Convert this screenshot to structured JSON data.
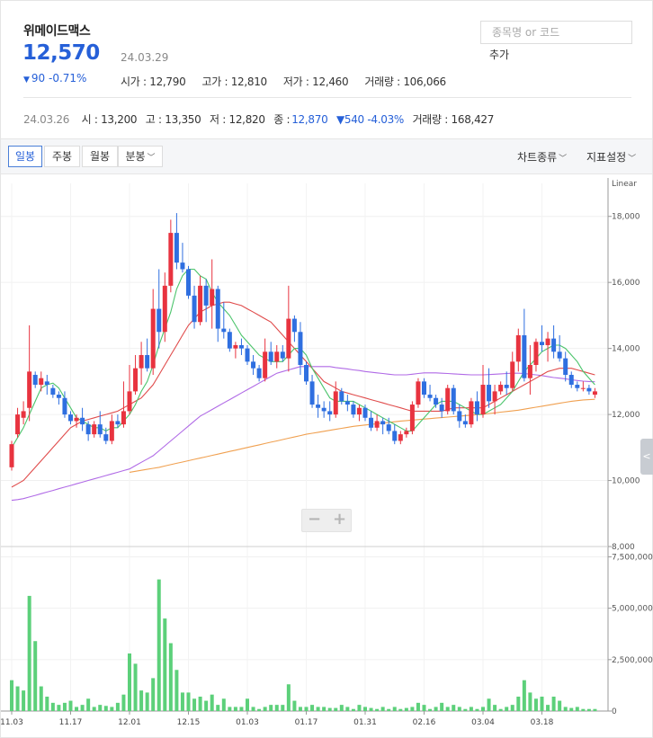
{
  "header": {
    "stock_name": "위메이드맥스",
    "price": "12,570",
    "date": "24.03.29",
    "change_symbol": "▼",
    "change": "90 -0.71%",
    "stats": [
      "시가 : 12,790",
      "고가 : 12,810",
      "저가 : 12,460",
      "거래량 : 106,066"
    ]
  },
  "search": {
    "placeholder": "종목명 or 코드",
    "add_label": "추가"
  },
  "prev_day": {
    "date": "24.03.26",
    "open": "시 : 13,200",
    "high": "고 : 13,350",
    "low": "저 : 12,820",
    "close_label": "종 :",
    "close_value": "12,870",
    "change": "▼540 -4.03%",
    "volume": "거래량 : 168,427"
  },
  "toolbar": {
    "tabs": [
      "일봉",
      "주봉",
      "월봉",
      "분봉"
    ],
    "active_tab": "일봉",
    "chart_type": "차트종류",
    "indicator": "지표설정"
  },
  "colors": {
    "up": "#e8333f",
    "down": "#2f6fe0",
    "ma5": "#4bc46b",
    "ma20": "#e04b4b",
    "ma60": "#b06ae6",
    "ma120": "#f0a050",
    "volume": "#5cd07a"
  },
  "chart_data": {
    "type": "candlestick",
    "scale_label": "Linear",
    "price_axis": {
      "ticks": [
        8000,
        10000,
        12000,
        14000,
        16000,
        18000
      ],
      "ylim": [
        8000,
        19000
      ]
    },
    "volume_axis": {
      "ticks": [
        0,
        2500000,
        5000000,
        7500000
      ],
      "tick_labels": [
        "0",
        "2,500,000",
        "5,000,000",
        "7,500,000"
      ],
      "ylim": [
        0,
        8000000
      ]
    },
    "x_labels": [
      "11.03",
      "11.17",
      "12.01",
      "12.15",
      "01.03",
      "01.17",
      "01.31",
      "02.16",
      "03.04",
      "03.18"
    ],
    "x_label_index": [
      0,
      10,
      20,
      30,
      40,
      50,
      60,
      70,
      80,
      90
    ],
    "candles": [
      [
        10400,
        11200,
        10300,
        11100
      ],
      [
        11400,
        12200,
        11300,
        12000
      ],
      [
        11900,
        12400,
        11700,
        12100
      ],
      [
        12200,
        14700,
        11800,
        13300
      ],
      [
        13200,
        13300,
        12800,
        12900
      ],
      [
        12900,
        13300,
        12700,
        13100
      ],
      [
        13000,
        13200,
        12600,
        12900
      ],
      [
        12800,
        12900,
        12500,
        12600
      ],
      [
        12600,
        12700,
        12300,
        12500
      ],
      [
        12500,
        12700,
        11900,
        12000
      ],
      [
        12000,
        12100,
        11700,
        11800
      ],
      [
        11800,
        12000,
        11600,
        11900
      ],
      [
        11900,
        12200,
        11500,
        11700
      ],
      [
        11700,
        11800,
        11200,
        11400
      ],
      [
        11400,
        11800,
        11300,
        11700
      ],
      [
        11700,
        12100,
        11300,
        11400
      ],
      [
        11400,
        11600,
        11100,
        11200
      ],
      [
        11200,
        12000,
        11100,
        11800
      ],
      [
        11800,
        12000,
        11600,
        11700
      ],
      [
        11700,
        13000,
        11600,
        12100
      ],
      [
        12100,
        13500,
        12000,
        12700
      ],
      [
        12700,
        13800,
        12600,
        13400
      ],
      [
        13400,
        14200,
        12900,
        13800
      ],
      [
        13800,
        14300,
        13300,
        13400
      ],
      [
        13400,
        15800,
        13200,
        15200
      ],
      [
        15200,
        16400,
        14000,
        14500
      ],
      [
        14500,
        16300,
        14200,
        15900
      ],
      [
        15900,
        17900,
        15700,
        17500
      ],
      [
        17500,
        18100,
        16400,
        16600
      ],
      [
        16600,
        17200,
        16300,
        16400
      ],
      [
        16400,
        16500,
        15500,
        15600
      ],
      [
        15600,
        15900,
        14600,
        14800
      ],
      [
        14800,
        16200,
        14700,
        15900
      ],
      [
        15900,
        16100,
        14800,
        15300
      ],
      [
        15300,
        16700,
        14600,
        15800
      ],
      [
        15800,
        15900,
        14200,
        14600
      ],
      [
        14600,
        15400,
        14300,
        14500
      ],
      [
        14500,
        14600,
        13900,
        14000
      ],
      [
        14000,
        14200,
        13700,
        14100
      ],
      [
        14100,
        14300,
        13800,
        14000
      ],
      [
        14000,
        14100,
        13500,
        13600
      ],
      [
        13600,
        13800,
        13200,
        13400
      ],
      [
        13400,
        13500,
        13000,
        13100
      ],
      [
        13100,
        14300,
        13000,
        13900
      ],
      [
        13900,
        14200,
        13500,
        13600
      ],
      [
        13600,
        14100,
        13400,
        13900
      ],
      [
        13900,
        14100,
        13600,
        13700
      ],
      [
        13700,
        15900,
        13300,
        14900
      ],
      [
        14900,
        15000,
        14200,
        14500
      ],
      [
        14500,
        14800,
        13200,
        13500
      ],
      [
        13500,
        13600,
        12900,
        13000
      ],
      [
        13000,
        13200,
        12200,
        12300
      ],
      [
        12300,
        12600,
        11900,
        12200
      ],
      [
        12200,
        12400,
        11900,
        12100
      ],
      [
        12100,
        12400,
        11800,
        12000
      ],
      [
        12000,
        13000,
        11900,
        12700
      ],
      [
        12700,
        12800,
        12300,
        12400
      ],
      [
        12400,
        12600,
        12100,
        12300
      ],
      [
        12300,
        12400,
        11900,
        12000
      ],
      [
        12000,
        12300,
        11800,
        12200
      ],
      [
        12200,
        12300,
        11800,
        11900
      ],
      [
        11900,
        12100,
        11500,
        11600
      ],
      [
        11600,
        12000,
        11500,
        11800
      ],
      [
        11800,
        11900,
        11400,
        11700
      ],
      [
        11700,
        11900,
        11400,
        11500
      ],
      [
        11500,
        11700,
        11100,
        11200
      ],
      [
        11200,
        11500,
        11100,
        11400
      ],
      [
        11400,
        11600,
        11300,
        11500
      ],
      [
        11500,
        12400,
        11400,
        12300
      ],
      [
        12300,
        13100,
        12200,
        13000
      ],
      [
        13000,
        13100,
        12500,
        12600
      ],
      [
        12600,
        12900,
        12400,
        12500
      ],
      [
        12500,
        12600,
        12200,
        12300
      ],
      [
        12300,
        12500,
        11900,
        12100
      ],
      [
        12100,
        12900,
        12000,
        12800
      ],
      [
        12800,
        12900,
        12000,
        12100
      ],
      [
        12100,
        12300,
        11600,
        11800
      ],
      [
        11800,
        12000,
        11600,
        11700
      ],
      [
        11700,
        12500,
        11600,
        12400
      ],
      [
        12400,
        12700,
        11800,
        12000
      ],
      [
        12000,
        13500,
        11900,
        12900
      ],
      [
        12900,
        13400,
        12200,
        12400
      ],
      [
        12400,
        12900,
        12000,
        12700
      ],
      [
        12700,
        13000,
        12600,
        12900
      ],
      [
        12900,
        13300,
        12600,
        12800
      ],
      [
        12800,
        13900,
        12700,
        13600
      ],
      [
        13600,
        14600,
        13300,
        14400
      ],
      [
        14400,
        15200,
        13000,
        13100
      ],
      [
        13100,
        14100,
        12600,
        13500
      ],
      [
        13500,
        14300,
        13300,
        14200
      ],
      [
        14200,
        14700,
        13900,
        14100
      ],
      [
        14100,
        14500,
        13600,
        14300
      ],
      [
        14300,
        14700,
        13700,
        13900
      ],
      [
        13900,
        14400,
        13600,
        13700
      ],
      [
        13700,
        13900,
        13000,
        13200
      ],
      [
        13200,
        13300,
        12800,
        12900
      ],
      [
        12900,
        13000,
        12700,
        12800
      ],
      [
        12800,
        13000,
        12700,
        12800
      ],
      [
        12800,
        12900,
        12600,
        12700
      ],
      [
        12600,
        12800,
        12500,
        12700
      ]
    ],
    "volumes": [
      1500000,
      1200000,
      1000000,
      5600000,
      3400000,
      1200000,
      700000,
      400000,
      300000,
      400000,
      500000,
      200000,
      300000,
      600000,
      200000,
      300000,
      250000,
      200000,
      400000,
      800000,
      2800000,
      2300000,
      1000000,
      900000,
      1600000,
      6400000,
      4500000,
      3300000,
      2000000,
      900000,
      900000,
      600000,
      700000,
      500000,
      800000,
      300000,
      600000,
      200000,
      200000,
      200000,
      600000,
      200000,
      100000,
      200000,
      300000,
      300000,
      300000,
      1300000,
      500000,
      200000,
      200000,
      300000,
      200000,
      200000,
      150000,
      150000,
      300000,
      200000,
      100000,
      300000,
      200000,
      150000,
      100000,
      200000,
      100000,
      200000,
      100000,
      150000,
      200000,
      400000,
      300000,
      100000,
      200000,
      400000,
      200000,
      300000,
      200000,
      100000,
      200000,
      100000,
      200000,
      600000,
      300000,
      100000,
      200000,
      300000,
      700000,
      1500000,
      900000,
      600000,
      700000,
      300000,
      700000,
      500000,
      200000,
      150000,
      200000,
      100000,
      100000,
      100000
    ],
    "ma5": [
      11000,
      11300,
      11600,
      12000,
      12400,
      12800,
      12900,
      12950,
      12800,
      12500,
      12200,
      11900,
      11800,
      11700,
      11600,
      11600,
      11500,
      11600,
      11600,
      11800,
      12000,
      12300,
      12700,
      13000,
      13500,
      14100,
      14600,
      15100,
      15800,
      16200,
      16400,
      16400,
      16200,
      16100,
      15700,
      15400,
      15200,
      15000,
      14700,
      14400,
      14200,
      14000,
      13800,
      13700,
      13600,
      13600,
      13600,
      13800,
      14000,
      14000,
      13800,
      13400,
      13100,
      12800,
      12500,
      12400,
      12400,
      12400,
      12400,
      12300,
      12200,
      12100,
      12000,
      11900,
      11800,
      11700,
      11600,
      11500,
      11500,
      11700,
      11900,
      12100,
      12300,
      12400,
      12400,
      12400,
      12300,
      12200,
      12100,
      12000,
      12000,
      12100,
      12200,
      12300,
      12500,
      12700,
      13000,
      13300,
      13500,
      13700,
      13900,
      14000,
      14100,
      14100,
      14000,
      13800,
      13600,
      13300,
      13100,
      12900
    ],
    "ma20": [
      9800,
      9900,
      10000,
      10200,
      10400,
      10600,
      10800,
      11000,
      11200,
      11400,
      11600,
      11700,
      11800,
      11850,
      11900,
      11950,
      12000,
      12050,
      12100,
      12200,
      12300,
      12400,
      12500,
      12700,
      12900,
      13200,
      13500,
      13800,
      14100,
      14400,
      14700,
      14900,
      15100,
      15200,
      15300,
      15350,
      15400,
      15400,
      15350,
      15300,
      15200,
      15100,
      15000,
      14900,
      14800,
      14600,
      14400,
      14200,
      14000,
      13800,
      13600,
      13400,
      13200,
      13000,
      12900,
      12800,
      12700,
      12650,
      12600,
      12550,
      12500,
      12450,
      12400,
      12350,
      12300,
      12250,
      12200,
      12150,
      12100,
      12100,
      12100,
      12100,
      12100,
      12100,
      12150,
      12200,
      12200,
      12200,
      12200,
      12200,
      12200,
      12300,
      12400,
      12500,
      12600,
      12700,
      12800,
      12900,
      13000,
      13100,
      13200,
      13300,
      13350,
      13400,
      13400,
      13400,
      13350,
      13300,
      13250,
      13200
    ],
    "ma60": [
      9400,
      9420,
      9450,
      9500,
      9550,
      9600,
      9650,
      9700,
      9750,
      9800,
      9850,
      9900,
      9950,
      10000,
      10050,
      10100,
      10150,
      10200,
      10250,
      10300,
      10350,
      10450,
      10550,
      10650,
      10750,
      10900,
      11050,
      11200,
      11350,
      11500,
      11650,
      11800,
      11950,
      12050,
      12150,
      12250,
      12350,
      12450,
      12550,
      12650,
      12750,
      12850,
      12950,
      13050,
      13150,
      13250,
      13300,
      13350,
      13400,
      13450,
      13450,
      13450,
      13450,
      13450,
      13450,
      13420,
      13400,
      13380,
      13350,
      13330,
      13300,
      13280,
      13260,
      13240,
      13220,
      13200,
      13200,
      13200,
      13220,
      13240,
      13260,
      13260,
      13260,
      13250,
      13240,
      13230,
      13220,
      13210,
      13200,
      13200,
      13200,
      13210,
      13220,
      13230,
      13240,
      13250,
      13250,
      13240,
      13220,
      13200,
      13180,
      13150,
      13120,
      13100,
      13080,
      13050,
      13030,
      13010,
      13000,
      12990
    ],
    "ma120": [
      null,
      null,
      null,
      null,
      null,
      null,
      null,
      null,
      null,
      null,
      null,
      null,
      null,
      null,
      null,
      null,
      null,
      null,
      null,
      null,
      10250,
      10280,
      10310,
      10340,
      10370,
      10400,
      10440,
      10480,
      10520,
      10560,
      10600,
      10640,
      10680,
      10720,
      10760,
      10800,
      10840,
      10880,
      10920,
      10960,
      11000,
      11040,
      11080,
      11120,
      11160,
      11200,
      11240,
      11280,
      11320,
      11360,
      11400,
      11430,
      11460,
      11490,
      11520,
      11550,
      11580,
      11610,
      11640,
      11660,
      11680,
      11700,
      11720,
      11740,
      11760,
      11780,
      11800,
      11815,
      11830,
      11845,
      11860,
      11875,
      11890,
      11905,
      11920,
      11935,
      11950,
      11965,
      11980,
      11995,
      12010,
      12030,
      12050,
      12070,
      12090,
      12110,
      12130,
      12160,
      12190,
      12220,
      12250,
      12280,
      12310,
      12340,
      12370,
      12400,
      12420,
      12440,
      12450,
      12460
    ]
  }
}
